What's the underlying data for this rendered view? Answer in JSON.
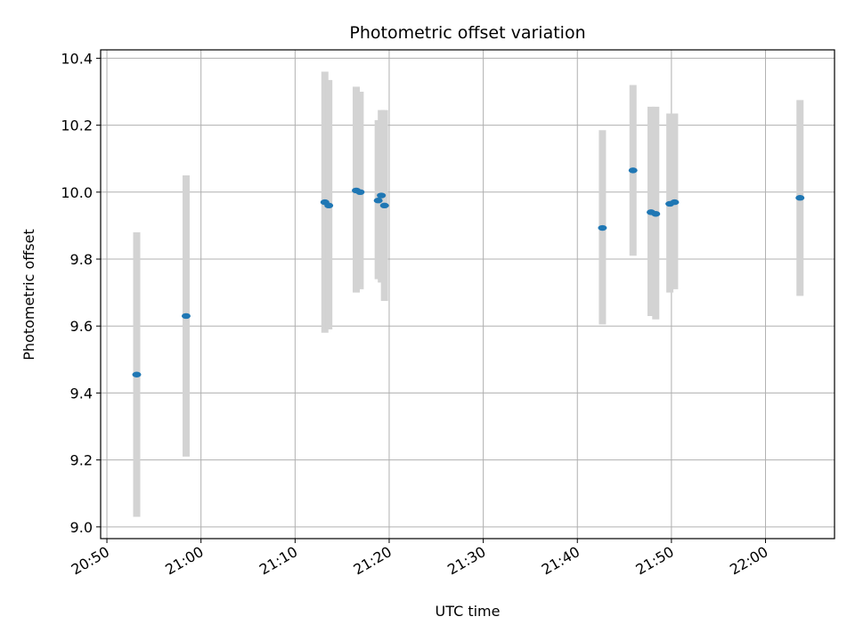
{
  "chart_data": {
    "type": "scatter",
    "title": "Photometric offset variation",
    "xlabel": "UTC time",
    "ylabel": "Photometric offset",
    "xlim": [
      "20:49:20",
      "22:07:20"
    ],
    "ylim": [
      8.965,
      10.425
    ],
    "x_ticks": [
      "20:50",
      "21:00",
      "21:10",
      "21:20",
      "21:30",
      "21:40",
      "21:50",
      "22:00"
    ],
    "y_ticks": [
      9.0,
      9.2,
      9.4,
      9.6,
      9.8,
      10.0,
      10.2,
      10.4
    ],
    "grid": true,
    "point_color": "#1f77b4",
    "errorbar_color": "#d3d3d3",
    "points": [
      {
        "x": "20:53:10",
        "y": 9.455,
        "err_low": 9.03,
        "err_high": 9.88
      },
      {
        "x": "20:58:25",
        "y": 9.63,
        "err_low": 9.21,
        "err_high": 10.05
      },
      {
        "x": "21:13:10",
        "y": 9.97,
        "err_low": 9.58,
        "err_high": 10.36
      },
      {
        "x": "21:13:35",
        "y": 9.96,
        "err_low": 9.59,
        "err_high": 10.335
      },
      {
        "x": "21:16:30",
        "y": 10.005,
        "err_low": 9.7,
        "err_high": 10.315
      },
      {
        "x": "21:16:55",
        "y": 10.0,
        "err_low": 9.71,
        "err_high": 10.3
      },
      {
        "x": "21:18:50",
        "y": 9.975,
        "err_low": 9.74,
        "err_high": 10.215
      },
      {
        "x": "21:19:10",
        "y": 9.99,
        "err_low": 9.73,
        "err_high": 10.245
      },
      {
        "x": "21:19:30",
        "y": 9.96,
        "err_low": 9.675,
        "err_high": 10.245
      },
      {
        "x": "21:42:40",
        "y": 9.893,
        "err_low": 9.605,
        "err_high": 10.185
      },
      {
        "x": "21:45:55",
        "y": 10.065,
        "err_low": 9.81,
        "err_high": 10.32
      },
      {
        "x": "21:47:50",
        "y": 9.94,
        "err_low": 9.63,
        "err_high": 10.255
      },
      {
        "x": "21:48:20",
        "y": 9.935,
        "err_low": 9.62,
        "err_high": 10.255
      },
      {
        "x": "21:49:50",
        "y": 9.965,
        "err_low": 9.7,
        "err_high": 10.235
      },
      {
        "x": "21:50:20",
        "y": 9.97,
        "err_low": 9.71,
        "err_high": 10.235
      },
      {
        "x": "22:03:40",
        "y": 9.983,
        "err_low": 9.69,
        "err_high": 10.275
      }
    ]
  }
}
